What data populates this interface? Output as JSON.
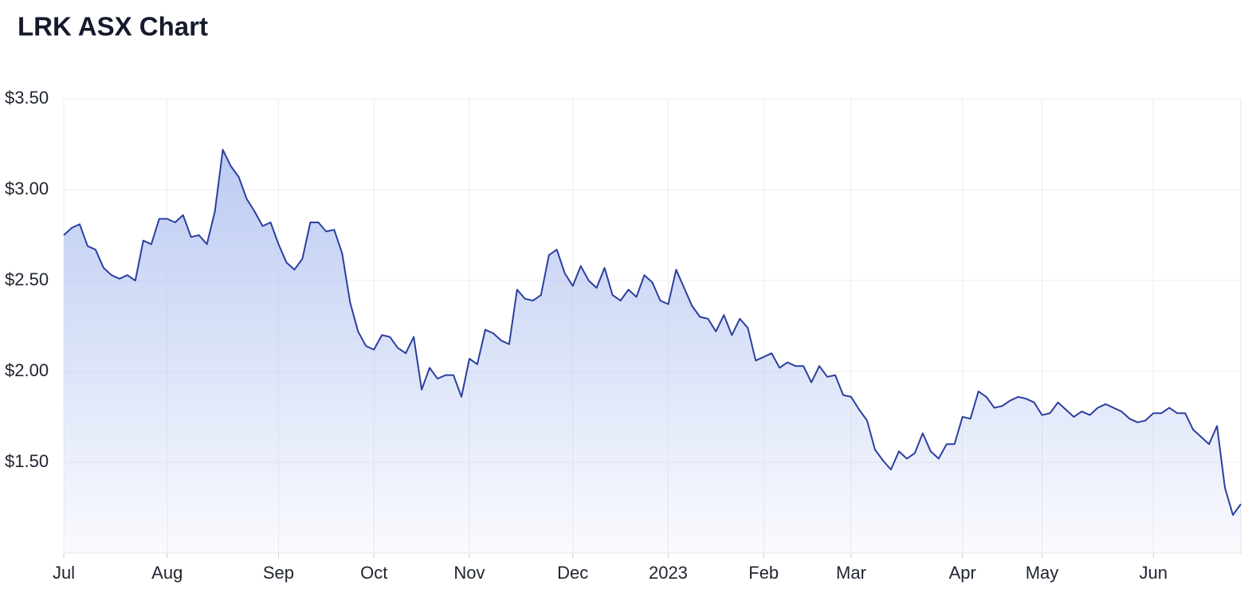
{
  "chart_data": {
    "type": "area",
    "title": "LRK ASX Chart",
    "categories": [
      "Jul",
      null,
      null,
      null,
      null,
      null,
      null,
      null,
      null,
      null,
      null,
      null,
      null,
      "Aug",
      null,
      null,
      null,
      null,
      null,
      null,
      null,
      null,
      null,
      null,
      null,
      null,
      null,
      "Sep",
      null,
      null,
      null,
      null,
      null,
      null,
      null,
      null,
      null,
      null,
      null,
      "Oct",
      null,
      null,
      null,
      null,
      null,
      null,
      null,
      null,
      null,
      null,
      null,
      "Nov",
      null,
      null,
      null,
      null,
      null,
      null,
      null,
      null,
      null,
      null,
      null,
      null,
      "Dec",
      null,
      null,
      null,
      null,
      null,
      null,
      null,
      null,
      null,
      null,
      null,
      "2023",
      null,
      null,
      null,
      null,
      null,
      null,
      null,
      null,
      null,
      null,
      null,
      "Feb",
      null,
      null,
      null,
      null,
      null,
      null,
      null,
      null,
      null,
      null,
      "Mar",
      null,
      null,
      null,
      null,
      null,
      null,
      null,
      null,
      null,
      null,
      null,
      null,
      null,
      "Apr",
      null,
      null,
      null,
      null,
      null,
      null,
      null,
      null,
      null,
      "May",
      null,
      null,
      null,
      null,
      null,
      null,
      null,
      null,
      null,
      null,
      null,
      null,
      null,
      "Jun",
      null,
      null,
      null,
      null,
      null,
      null,
      null,
      null,
      null,
      null,
      null
    ],
    "values": [
      2.75,
      2.79,
      2.81,
      2.69,
      2.67,
      2.57,
      2.53,
      2.51,
      2.53,
      2.5,
      2.72,
      2.7,
      2.84,
      2.84,
      2.82,
      2.86,
      2.74,
      2.75,
      2.7,
      2.88,
      3.22,
      3.13,
      3.07,
      2.95,
      2.88,
      2.8,
      2.82,
      2.7,
      2.6,
      2.56,
      2.62,
      2.82,
      2.82,
      2.77,
      2.78,
      2.65,
      2.38,
      2.22,
      2.14,
      2.12,
      2.2,
      2.19,
      2.13,
      2.1,
      2.19,
      1.9,
      2.02,
      1.96,
      1.98,
      1.98,
      1.86,
      2.07,
      2.04,
      2.23,
      2.21,
      2.17,
      2.15,
      2.45,
      2.4,
      2.39,
      2.42,
      2.64,
      2.67,
      2.54,
      2.47,
      2.58,
      2.5,
      2.46,
      2.57,
      2.42,
      2.39,
      2.45,
      2.41,
      2.53,
      2.49,
      2.39,
      2.37,
      2.56,
      2.46,
      2.36,
      2.3,
      2.29,
      2.22,
      2.31,
      2.2,
      2.29,
      2.24,
      2.06,
      2.08,
      2.1,
      2.02,
      2.05,
      2.03,
      2.03,
      1.94,
      2.03,
      1.97,
      1.98,
      1.87,
      1.86,
      1.79,
      1.73,
      1.57,
      1.51,
      1.46,
      1.56,
      1.52,
      1.55,
      1.66,
      1.56,
      1.52,
      1.6,
      1.6,
      1.75,
      1.74,
      1.89,
      1.86,
      1.8,
      1.81,
      1.84,
      1.86,
      1.85,
      1.83,
      1.76,
      1.77,
      1.83,
      1.79,
      1.75,
      1.78,
      1.76,
      1.8,
      1.82,
      1.8,
      1.78,
      1.74,
      1.72,
      1.73,
      1.77,
      1.77,
      1.8,
      1.77,
      1.77,
      1.68,
      1.64,
      1.6,
      1.7,
      1.36,
      1.21,
      1.27
    ],
    "color": "#2b3f9e",
    "fill_color": "#b9c8f2",
    "ylim": [
      1,
      3.5
    ],
    "yticks": [
      {
        "value": 1.5,
        "label": "$1.50"
      },
      {
        "value": 2,
        "label": "$2.00"
      },
      {
        "value": 2.5,
        "label": "$2.50"
      },
      {
        "value": 3,
        "label": "$3.00"
      },
      {
        "value": 3.5,
        "label": "$3.50"
      }
    ],
    "grid": true
  }
}
